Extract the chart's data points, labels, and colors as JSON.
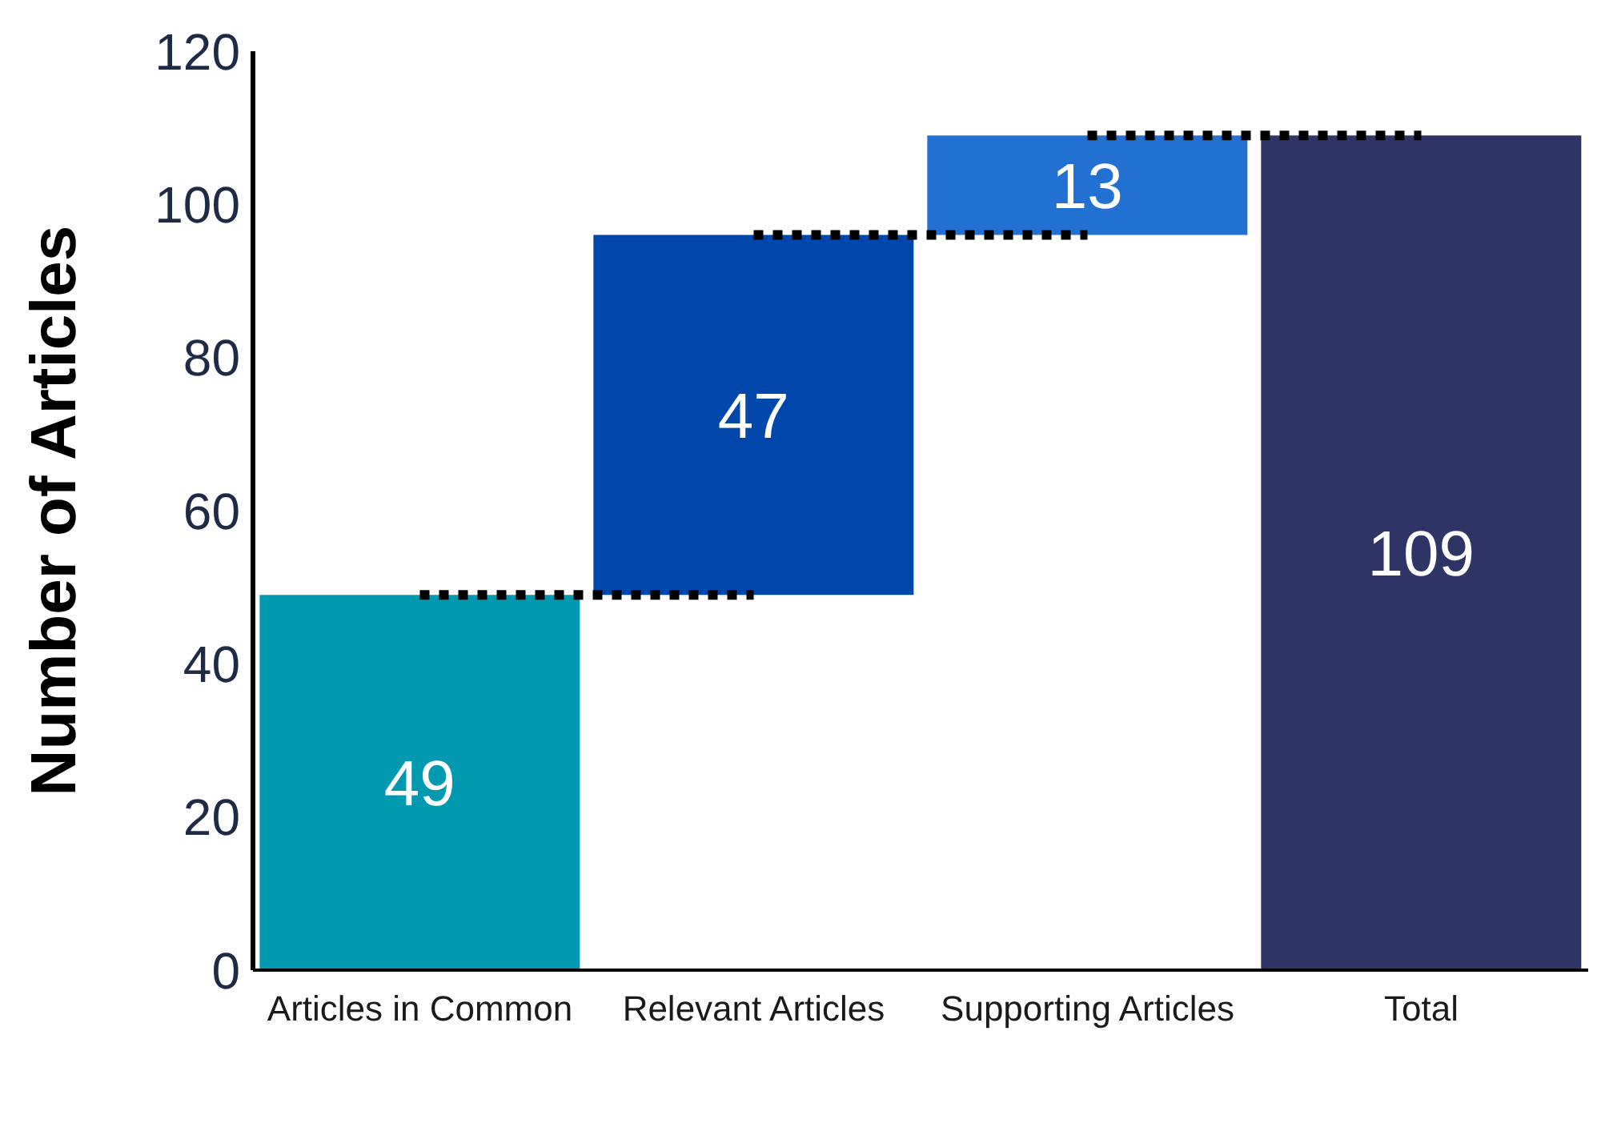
{
  "chart_data": {
    "type": "bar",
    "ylabel": "Number of Articles",
    "categories": [
      "Articles in Common",
      "Relevant Articles",
      "Supporting Articles",
      "Total"
    ],
    "values": [
      49,
      47,
      13,
      109
    ],
    "base": [
      0,
      49,
      96,
      0
    ],
    "colors": [
      "#0099b0",
      "#0047ab",
      "#2370d3",
      "#2e3466"
    ],
    "ylim": [
      0,
      120
    ],
    "yticks": [
      0,
      20,
      40,
      60,
      80,
      100,
      120
    ],
    "ref_lines": [
      {
        "axis": "y",
        "value": 49,
        "color": "#000000",
        "line_style": "dotted"
      },
      {
        "axis": "y",
        "value": 96,
        "color": "#000000",
        "line_style": "dotted"
      },
      {
        "axis": "y",
        "value": 109,
        "color": "#000000",
        "line_style": "dotted"
      }
    ],
    "data_labels": true
  }
}
